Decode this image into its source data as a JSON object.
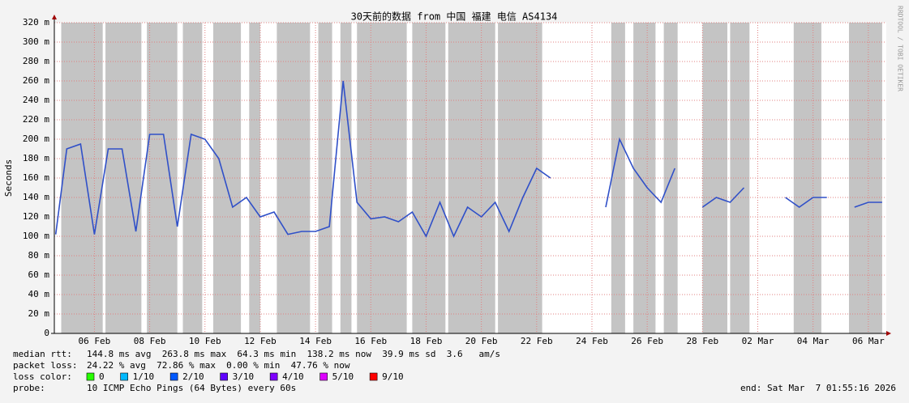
{
  "chart_data": {
    "type": "line",
    "title": "30天前的数据 from 中国 福建 电信 AS4134",
    "y_label": "Seconds",
    "watermark": "RRDTOOL / TOBI OETIKER",
    "xlim": [
      35.55,
      65.65
    ],
    "xticks": [
      {
        "value": 37,
        "label": "06 Feb"
      },
      {
        "value": 39,
        "label": "08 Feb"
      },
      {
        "value": 41,
        "label": "10 Feb"
      },
      {
        "value": 43,
        "label": "12 Feb"
      },
      {
        "value": 45,
        "label": "14 Feb"
      },
      {
        "value": 47,
        "label": "16 Feb"
      },
      {
        "value": 49,
        "label": "18 Feb"
      },
      {
        "value": 51,
        "label": "20 Feb"
      },
      {
        "value": 53,
        "label": "22 Feb"
      },
      {
        "value": 55,
        "label": "24 Feb"
      },
      {
        "value": 57,
        "label": "26 Feb"
      },
      {
        "value": 59,
        "label": "28 Feb"
      },
      {
        "value": 61,
        "label": "02 Mar"
      },
      {
        "value": 63,
        "label": "04 Mar"
      },
      {
        "value": 65,
        "label": "06 Mar"
      }
    ],
    "ylim": [
      0,
      320
    ],
    "yticks": [
      0,
      {
        "value": 20,
        "label": "20 m"
      },
      {
        "value": 40,
        "label": "40 m"
      },
      {
        "value": 60,
        "label": "60 m"
      },
      {
        "value": 80,
        "label": "80 m"
      },
      {
        "value": 100,
        "label": "100 m"
      },
      {
        "value": 120,
        "label": "120 m"
      },
      {
        "value": 140,
        "label": "140 m"
      },
      {
        "value": 160,
        "label": "160 m"
      },
      {
        "value": 180,
        "label": "180 m"
      },
      {
        "value": 200,
        "label": "200 m"
      },
      {
        "value": 220,
        "label": "220 m"
      },
      {
        "value": 240,
        "label": "240 m"
      },
      {
        "value": 260,
        "label": "260 m"
      },
      {
        "value": 280,
        "label": "280 m"
      },
      {
        "value": 300,
        "label": "300 m"
      },
      {
        "value": 320,
        "label": "320 m"
      }
    ],
    "grid": true,
    "x": [
      35.6,
      36,
      36.5,
      37,
      37.5,
      38,
      38.5,
      39,
      39.5,
      40,
      40.5,
      41,
      41.5,
      42,
      42.5,
      43,
      43.5,
      44,
      44.5,
      45,
      45.5,
      46,
      46.5,
      47,
      47.5,
      48,
      48.5,
      49,
      49.5,
      50,
      50.5,
      51,
      51.5,
      52,
      52.5,
      53,
      53.5,
      54.5,
      55.5,
      56,
      56.5,
      57,
      57.5,
      58,
      58.5,
      59,
      59.5,
      60,
      60.5,
      61.5,
      62,
      62.5,
      63,
      63.5,
      64,
      64.5,
      65,
      65.5
    ],
    "series": [
      {
        "name": "median rtt",
        "color": "#3050c8",
        "values": [
          102,
          190,
          195,
          102,
          190,
          190,
          105,
          205,
          205,
          110,
          205,
          200,
          180,
          130,
          140,
          120,
          125,
          102,
          105,
          105,
          110,
          260,
          135,
          118,
          120,
          115,
          125,
          100,
          135,
          100,
          130,
          120,
          135,
          105,
          140,
          170,
          160,
          null,
          130,
          200,
          170,
          150,
          135,
          170,
          null,
          130,
          140,
          135,
          150,
          null,
          140,
          130,
          140,
          140,
          null,
          130,
          135,
          135
        ]
      }
    ],
    "loss_bands": [
      [
        35.8,
        37.3
      ],
      [
        37.4,
        38.7
      ],
      [
        38.9,
        40.0
      ],
      [
        40.2,
        40.9
      ],
      [
        41.3,
        42.3
      ],
      [
        42.6,
        43.0
      ],
      [
        43.6,
        44.8
      ],
      [
        45.1,
        45.6
      ],
      [
        45.9,
        46.3
      ],
      [
        46.5,
        48.3
      ],
      [
        48.5,
        49.7
      ],
      [
        49.8,
        51.5
      ],
      [
        51.6,
        53.2
      ],
      [
        55.7,
        56.2
      ],
      [
        56.5,
        57.3
      ],
      [
        57.6,
        58.1
      ],
      [
        59.0,
        59.9
      ],
      [
        60.0,
        60.7
      ],
      [
        62.3,
        63.3
      ],
      [
        64.3,
        65.5
      ]
    ]
  },
  "footer": {
    "median_label": "median rtt:",
    "median_text": "144.8 ms avg  263.8 ms max  64.3 ms min  138.2 ms now  39.9 ms sd  3.6   am/s",
    "loss_label": "packet loss:",
    "loss_text": "24.22 % avg  72.86 % max  0.00 % min  47.76 % now",
    "color_label": "loss color:",
    "loss_colors": [
      {
        "label": "0",
        "color": "#26ff00"
      },
      {
        "label": "1/10",
        "color": "#00b8ff"
      },
      {
        "label": "2/10",
        "color": "#0059ff"
      },
      {
        "label": "3/10",
        "color": "#5e00ff"
      },
      {
        "label": "4/10",
        "color": "#7e00ff"
      },
      {
        "label": "5/10",
        "color": "#dd00ff"
      },
      {
        "label": "9/10",
        "color": "#ff0000"
      }
    ],
    "probe_label": "probe:",
    "probe_text": "10 ICMP Echo Pings (64 Bytes) every 60s",
    "end_text": "end: Sat Mar  7 01:55:16 2026"
  }
}
